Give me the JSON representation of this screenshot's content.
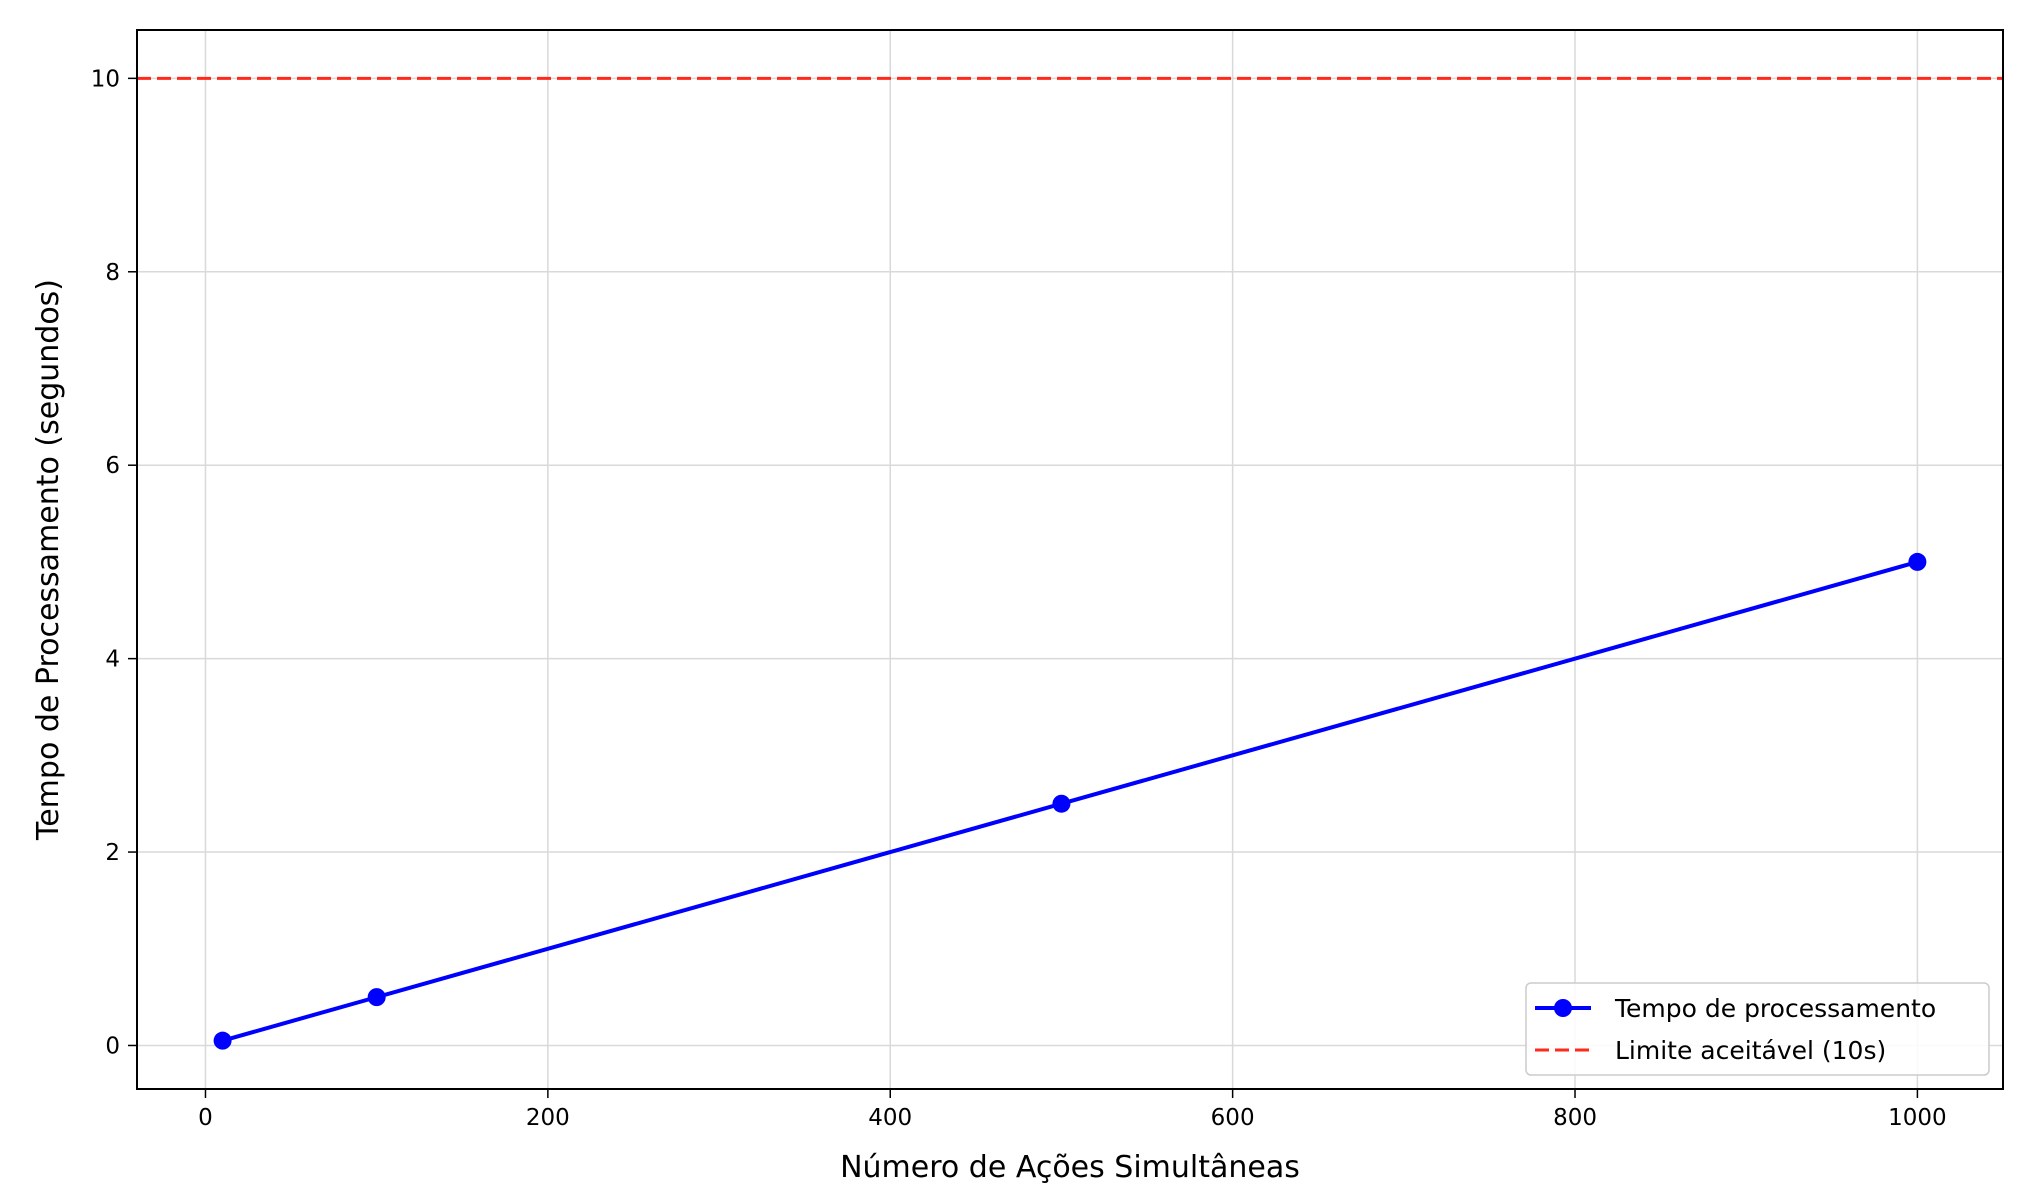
{
  "chart_data": {
    "type": "line",
    "title": "",
    "xlabel": "Número de Ações Simultâneas",
    "ylabel": "Tempo de Processamento (segundos)",
    "xlim": [
      -40,
      1050
    ],
    "ylim": [
      -0.45,
      10.5
    ],
    "x_ticks": [
      0,
      200,
      400,
      600,
      800,
      1000
    ],
    "y_ticks": [
      0,
      2,
      4,
      6,
      8,
      10
    ],
    "x_tick_labels": [
      "0",
      "200",
      "400",
      "600",
      "800",
      "1000"
    ],
    "y_tick_labels": [
      "0",
      "2",
      "4",
      "6",
      "8",
      "10"
    ],
    "grid": true,
    "legend_position": "lower-right",
    "series": [
      {
        "name": "Tempo de processamento",
        "x": [
          10,
          100,
          500,
          1000
        ],
        "y": [
          0.05,
          0.5,
          2.5,
          5.0
        ],
        "color": "#0000ff",
        "style": "solid",
        "marker": "circle"
      }
    ],
    "reference_lines": [
      {
        "name": "Limite aceitável (10s)",
        "y": 10,
        "color": "#ff2a1a",
        "style": "dashed"
      }
    ]
  }
}
